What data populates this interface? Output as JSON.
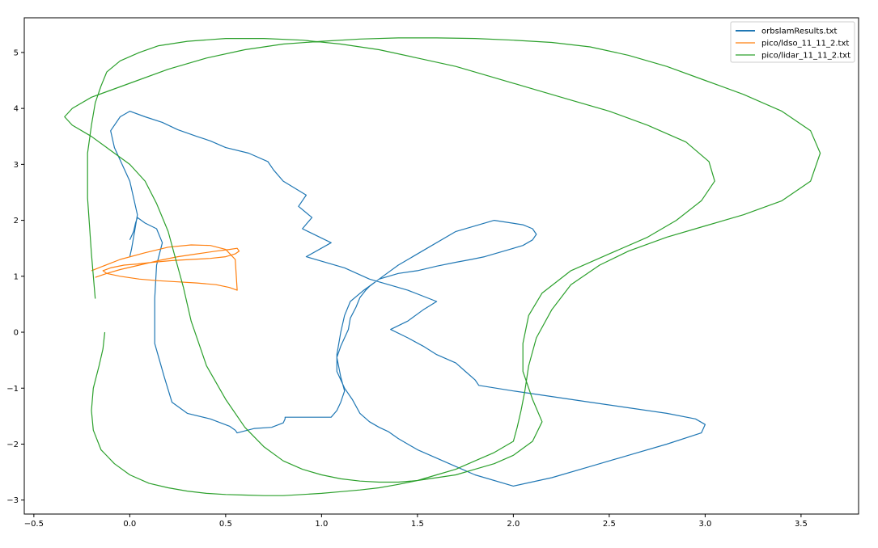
{
  "chart_data": {
    "type": "line",
    "title": "",
    "xlabel": "",
    "ylabel": "",
    "xlim": [
      -0.55,
      3.8
    ],
    "ylim": [
      -3.25,
      5.62
    ],
    "x_ticks": [
      -0.5,
      0.0,
      0.5,
      1.0,
      1.5,
      2.0,
      2.5,
      3.0,
      3.5
    ],
    "x_tick_labels": [
      "−0.5",
      "0.0",
      "0.5",
      "1.0",
      "1.5",
      "2.0",
      "2.5",
      "3.0",
      "3.5"
    ],
    "y_ticks": [
      -3,
      -2,
      -1,
      0,
      1,
      2,
      3,
      4,
      5
    ],
    "y_tick_labels": [
      "−3",
      "−2",
      "−1",
      "0",
      "1",
      "2",
      "3",
      "4",
      "5"
    ],
    "grid": false,
    "legend_position": "top-right",
    "series": [
      {
        "name": "orbslamResults.txt",
        "color": "#1f77b4",
        "x": [
          0.0,
          0.02,
          0.03,
          0.04,
          0.08,
          0.14,
          0.17,
          0.14,
          0.13,
          0.13,
          0.18,
          0.22,
          0.3,
          0.42,
          0.52,
          0.55,
          0.56,
          0.65,
          0.74,
          0.8,
          0.81,
          0.81,
          1.05,
          1.08,
          1.1,
          1.12,
          1.1,
          1.08,
          1.1,
          1.14,
          1.15,
          1.18,
          1.2,
          1.23,
          1.25,
          1.3,
          1.4,
          1.5,
          1.6,
          1.7,
          1.78,
          1.85,
          1.95,
          2.05,
          2.1,
          2.12,
          2.1,
          2.05,
          1.9,
          1.7,
          1.55,
          1.4,
          1.3,
          1.22,
          1.15,
          1.12,
          1.1,
          1.08,
          1.08,
          1.12,
          1.16,
          1.2,
          1.25,
          1.3,
          1.35,
          1.4,
          1.5,
          1.6,
          1.7,
          1.8,
          2.0,
          2.2,
          2.4,
          2.6,
          2.8,
          2.98,
          3.0,
          2.95,
          2.8,
          2.6,
          2.4,
          2.2,
          2.0,
          1.82,
          1.8,
          1.75,
          1.7,
          1.6,
          1.53,
          1.45,
          1.36,
          1.45,
          1.53,
          1.6,
          1.45,
          1.25,
          1.12,
          0.92,
          1.05,
          0.9,
          0.95,
          0.88,
          0.92,
          0.8,
          0.75,
          0.72,
          0.62,
          0.5,
          0.42,
          0.35,
          0.25,
          0.17,
          0.08,
          0.0,
          -0.05,
          -0.1,
          -0.08,
          -0.04,
          0.0,
          0.02,
          0.04,
          0.03,
          0.02,
          0.01,
          0.0
        ],
        "y": [
          1.65,
          1.8,
          1.95,
          2.05,
          1.95,
          1.85,
          1.6,
          1.2,
          0.6,
          -0.2,
          -0.8,
          -1.25,
          -1.45,
          -1.55,
          -1.68,
          -1.75,
          -1.8,
          -1.72,
          -1.7,
          -1.62,
          -1.55,
          -1.52,
          -1.52,
          -1.4,
          -1.25,
          -1.05,
          -0.8,
          -0.45,
          -0.25,
          0.05,
          0.25,
          0.45,
          0.62,
          0.75,
          0.82,
          0.95,
          1.05,
          1.1,
          1.18,
          1.25,
          1.3,
          1.35,
          1.45,
          1.55,
          1.65,
          1.75,
          1.85,
          1.92,
          2.0,
          1.8,
          1.5,
          1.2,
          0.95,
          0.75,
          0.55,
          0.3,
          0.0,
          -0.4,
          -0.7,
          -1.0,
          -1.2,
          -1.45,
          -1.6,
          -1.7,
          -1.78,
          -1.9,
          -2.1,
          -2.25,
          -2.4,
          -2.55,
          -2.75,
          -2.6,
          -2.4,
          -2.2,
          -2.0,
          -1.8,
          -1.65,
          -1.55,
          -1.45,
          -1.35,
          -1.25,
          -1.15,
          -1.05,
          -0.95,
          -0.85,
          -0.7,
          -0.55,
          -0.4,
          -0.25,
          -0.1,
          0.05,
          0.2,
          0.4,
          0.55,
          0.75,
          0.95,
          1.15,
          1.35,
          1.6,
          1.85,
          2.05,
          2.25,
          2.45,
          2.7,
          2.9,
          3.05,
          3.2,
          3.3,
          3.42,
          3.5,
          3.62,
          3.75,
          3.85,
          3.95,
          3.85,
          3.6,
          3.3,
          3.0,
          2.7,
          2.4,
          2.1,
          1.9,
          1.7,
          1.5,
          1.35
        ],
        "x_samples": [
          0.02,
          0.03,
          0.1,
          0.17,
          0.14,
          0.13,
          0.13,
          0.18,
          0.22,
          0.3,
          0.42,
          0.52,
          0.55,
          0.56,
          0.65,
          0.74,
          0.8,
          0.81,
          0.81,
          1.05,
          1.08,
          1.12,
          1.1,
          1.08,
          1.12,
          1.1,
          1.15,
          1.2,
          1.25,
          1.35,
          1.45,
          1.55,
          1.65,
          1.75,
          1.85,
          1.95,
          2.05,
          2.1,
          2.08,
          2.05,
          1.85,
          1.7,
          1.55,
          1.4,
          1.3,
          1.2,
          1.15,
          1.12,
          1.1,
          1.05,
          1.12,
          1.18,
          1.25,
          1.4,
          1.55,
          1.65,
          1.5,
          1.35,
          1.2,
          1.05,
          0.9,
          0.8,
          0.75,
          0.65,
          0.55,
          0.5,
          0.42,
          0.32,
          0.2,
          0.12,
          0.08,
          0.0,
          -0.07,
          -0.1,
          -0.12,
          -0.15,
          -0.18,
          -0.1,
          -0.06
        ]
      },
      {
        "name": "pico/ldso_11_11_2.txt",
        "color": "#ff7f0e",
        "x": [
          -0.18,
          -0.12,
          -0.05,
          0.05,
          0.15,
          0.25,
          0.35,
          0.45,
          0.52,
          0.56,
          0.57,
          0.55,
          0.5,
          0.42,
          0.32,
          0.22,
          0.12,
          0.04,
          -0.03,
          -0.1,
          -0.14,
          -0.12,
          -0.05,
          0.05,
          0.15,
          0.25,
          0.35,
          0.45,
          0.52,
          0.56,
          0.55,
          0.5,
          0.42,
          0.32,
          0.2,
          0.08,
          -0.05,
          -0.2
        ],
        "y": [
          0.98,
          1.05,
          1.12,
          1.2,
          1.28,
          1.35,
          1.4,
          1.45,
          1.48,
          1.5,
          1.45,
          1.4,
          1.35,
          1.32,
          1.3,
          1.28,
          1.25,
          1.22,
          1.2,
          1.15,
          1.1,
          1.05,
          1.0,
          0.95,
          0.92,
          0.9,
          0.88,
          0.85,
          0.8,
          0.75,
          1.3,
          1.48,
          1.55,
          1.56,
          1.52,
          1.42,
          1.3,
          1.1
        ]
      },
      {
        "name": "pico/lidar_11_11_2.txt",
        "color": "#2ca02c",
        "x": [
          -0.13,
          -0.14,
          -0.16,
          -0.19,
          -0.2,
          -0.19,
          -0.15,
          -0.08,
          0.0,
          0.1,
          0.2,
          0.3,
          0.4,
          0.5,
          0.6,
          0.7,
          0.8,
          0.9,
          1.0,
          1.1,
          1.2,
          1.3,
          1.4,
          1.5,
          1.6,
          1.7,
          1.8,
          1.9,
          2.0,
          2.02,
          2.04,
          2.06,
          2.08,
          2.12,
          2.2,
          2.3,
          2.45,
          2.6,
          2.8,
          3.0,
          3.2,
          3.4,
          3.55,
          3.6,
          3.55,
          3.4,
          3.2,
          3.0,
          2.8,
          2.6,
          2.4,
          2.2,
          2.0,
          1.8,
          1.6,
          1.4,
          1.2,
          1.0,
          0.8,
          0.6,
          0.4,
          0.2,
          0.0,
          -0.2,
          -0.3,
          -0.34,
          -0.3,
          -0.2,
          -0.1,
          0.0,
          0.08,
          0.14,
          0.2,
          0.24,
          0.28,
          0.32,
          0.4,
          0.5,
          0.6,
          0.7,
          0.8,
          0.9,
          1.0,
          1.1,
          1.2,
          1.3,
          1.4,
          1.5,
          1.6,
          1.7,
          1.8,
          1.9,
          2.0,
          2.1,
          2.15,
          2.1,
          2.05,
          2.05,
          2.08,
          2.15,
          2.3,
          2.5,
          2.7,
          2.85,
          2.98,
          3.05,
          3.02,
          2.9,
          2.7,
          2.5,
          2.3,
          2.1,
          1.9,
          1.7,
          1.5,
          1.3,
          1.1,
          0.9,
          0.7,
          0.5,
          0.3,
          0.15,
          0.05,
          -0.05,
          -0.12,
          -0.15,
          -0.18,
          -0.2,
          -0.22,
          -0.22,
          -0.2,
          -0.18
        ],
        "y": [
          0.0,
          -0.3,
          -0.6,
          -1.0,
          -1.4,
          -1.75,
          -2.1,
          -2.35,
          -2.55,
          -2.7,
          -2.78,
          -2.84,
          -2.88,
          -2.9,
          -2.91,
          -2.92,
          -2.92,
          -2.9,
          -2.88,
          -2.85,
          -2.82,
          -2.78,
          -2.72,
          -2.65,
          -2.55,
          -2.45,
          -2.3,
          -2.15,
          -1.95,
          -1.7,
          -1.4,
          -1.05,
          -0.6,
          -0.1,
          0.4,
          0.85,
          1.2,
          1.45,
          1.7,
          1.9,
          2.1,
          2.35,
          2.7,
          3.2,
          3.6,
          3.95,
          4.25,
          4.5,
          4.75,
          4.95,
          5.1,
          5.18,
          5.22,
          5.25,
          5.26,
          5.26,
          5.24,
          5.2,
          5.15,
          5.05,
          4.9,
          4.7,
          4.45,
          4.2,
          4.0,
          3.85,
          3.7,
          3.5,
          3.25,
          3.0,
          2.7,
          2.3,
          1.8,
          1.3,
          0.8,
          0.2,
          -0.6,
          -1.2,
          -1.7,
          -2.05,
          -2.3,
          -2.45,
          -2.55,
          -2.62,
          -2.66,
          -2.68,
          -2.68,
          -2.65,
          -2.6,
          -2.55,
          -2.45,
          -2.35,
          -2.2,
          -1.95,
          -1.6,
          -1.2,
          -0.7,
          -0.2,
          0.3,
          0.7,
          1.1,
          1.4,
          1.7,
          2.0,
          2.35,
          2.7,
          3.05,
          3.4,
          3.7,
          3.95,
          4.15,
          4.35,
          4.55,
          4.75,
          4.9,
          5.05,
          5.15,
          5.22,
          5.25,
          5.25,
          5.2,
          5.12,
          5.0,
          4.85,
          4.65,
          4.4,
          4.1,
          3.7,
          3.2,
          2.4,
          1.4,
          0.6
        ],
        "hidden_tail": true
      }
    ]
  }
}
